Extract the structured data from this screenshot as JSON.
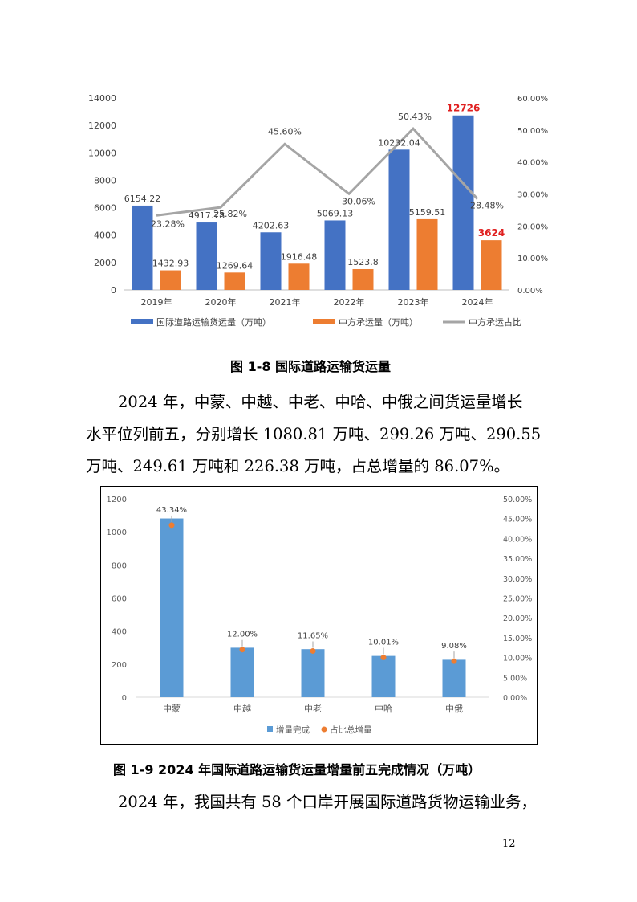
{
  "chart_data": [
    {
      "type": "bar",
      "categories": [
        "2019年",
        "2020年",
        "2021年",
        "2022年",
        "2023年",
        "2024年"
      ],
      "series": [
        {
          "name": "国际道路运输货运量（万吨）",
          "kind": "bar",
          "axis": "left",
          "color": "#4472C4",
          "values": [
            6154.22,
            4917.78,
            4202.63,
            5069.13,
            10232.04,
            12726
          ],
          "labels": [
            "6154.22",
            "4917.78",
            "4202.63",
            "5069.13",
            "10232.04",
            "12726"
          ]
        },
        {
          "name": "中方承运量（万吨）",
          "kind": "bar",
          "axis": "left",
          "color": "#ED7D31",
          "values": [
            1432.93,
            1269.64,
            1916.48,
            1523.8,
            5159.51,
            3624
          ],
          "labels": [
            "1432.93",
            "1269.64",
            "1916.48",
            "1523.8",
            "5159.51",
            "3624"
          ]
        },
        {
          "name": "中方承运占比",
          "kind": "line",
          "axis": "right",
          "color": "#A5A5A5",
          "values": [
            23.28,
            25.82,
            45.6,
            30.06,
            50.43,
            28.48
          ],
          "labels": [
            "23.28%",
            "25.82%",
            "45.60%",
            "30.06%",
            "50.43%",
            "28.48%"
          ]
        }
      ],
      "highlight_color": "#E02020",
      "left_axis": {
        "min": 0,
        "max": 14000,
        "ticks": [
          "0",
          "2000",
          "4000",
          "6000",
          "8000",
          "10000",
          "12000",
          "14000"
        ]
      },
      "right_axis": {
        "min": 0,
        "max": 60,
        "ticks": [
          "0.00%",
          "10.00%",
          "20.00%",
          "30.00%",
          "40.00%",
          "50.00%",
          "60.00%"
        ]
      },
      "legend_position": "bottom"
    },
    {
      "type": "bar",
      "categories": [
        "中蒙",
        "中越",
        "中老",
        "中哈",
        "中俄"
      ],
      "series": [
        {
          "name": "增量完成",
          "kind": "bar",
          "axis": "left",
          "color": "#5B9BD5",
          "values": [
            1080.81,
            299.26,
            290.55,
            249.61,
            226.38
          ]
        },
        {
          "name": "占比总增量",
          "kind": "scatter",
          "axis": "right",
          "color": "#ED7D31",
          "values": [
            43.34,
            12.0,
            11.65,
            10.01,
            9.08
          ],
          "labels": [
            "43.34%",
            "12.00%",
            "11.65%",
            "10.01%",
            "9.08%"
          ]
        }
      ],
      "left_axis": {
        "min": 0,
        "max": 1200,
        "ticks": [
          "0",
          "200",
          "400",
          "600",
          "800",
          "1000",
          "1200"
        ]
      },
      "right_axis": {
        "min": 0,
        "max": 50,
        "ticks": [
          "0.00%",
          "5.00%",
          "10.00%",
          "15.00%",
          "20.00%",
          "25.00%",
          "30.00%",
          "35.00%",
          "40.00%",
          "45.00%",
          "50.00%"
        ]
      },
      "legend_position": "bottom"
    }
  ],
  "figure1_caption": "图 1-8  国际道路运输货运量",
  "paragraph1": {
    "lines": [
      "2024 年，中蒙、中越、中老、中哈、中俄之间货运量增长",
      "水平位列前五，分别增长 1080.81 万吨、299.26 万吨、290.55",
      "万吨、249.61 万吨和 226.38 万吨，占总增量的 86.07%。"
    ]
  },
  "figure2_caption": "图 1-9 2024 年国际道路运输货运量增量前五完成情况（万吨）",
  "paragraph2": {
    "lines": [
      "2024 年，我国共有 58 个口岸开展国际道路货物运输业务，"
    ]
  },
  "page_number": "12"
}
